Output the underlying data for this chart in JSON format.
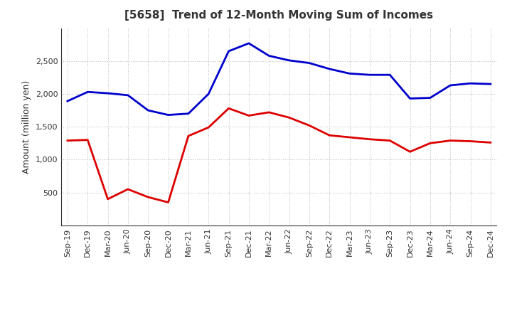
{
  "title": "[5658]  Trend of 12-Month Moving Sum of Incomes",
  "ylabel": "Amount (million yen)",
  "ylim": [
    0,
    3000
  ],
  "yticks": [
    500,
    1000,
    1500,
    2000,
    2500
  ],
  "labels": [
    "Sep-19",
    "Dec-19",
    "Mar-20",
    "Jun-20",
    "Sep-20",
    "Dec-20",
    "Mar-21",
    "Jun-21",
    "Sep-21",
    "Dec-21",
    "Mar-22",
    "Jun-22",
    "Sep-22",
    "Dec-22",
    "Mar-23",
    "Jun-23",
    "Sep-23",
    "Dec-23",
    "Mar-24",
    "Jun-24",
    "Sep-24",
    "Dec-24"
  ],
  "ordinary_income": [
    1890,
    2030,
    2010,
    1980,
    1750,
    1680,
    1700,
    2000,
    2650,
    2770,
    2580,
    2510,
    2470,
    2380,
    2310,
    2290,
    2290,
    1930,
    1940,
    2130,
    2160,
    2150
  ],
  "net_income": [
    1290,
    1300,
    400,
    550,
    430,
    350,
    1360,
    1490,
    1780,
    1670,
    1720,
    1640,
    1520,
    1370,
    1340,
    1310,
    1290,
    1120,
    1250,
    1290,
    1280,
    1260
  ],
  "ordinary_color": "#0000CC",
  "net_color": "#DD0000",
  "background_color": "#FFFFFF",
  "grid_color": "#AAAAAA",
  "title_color": "#333333"
}
